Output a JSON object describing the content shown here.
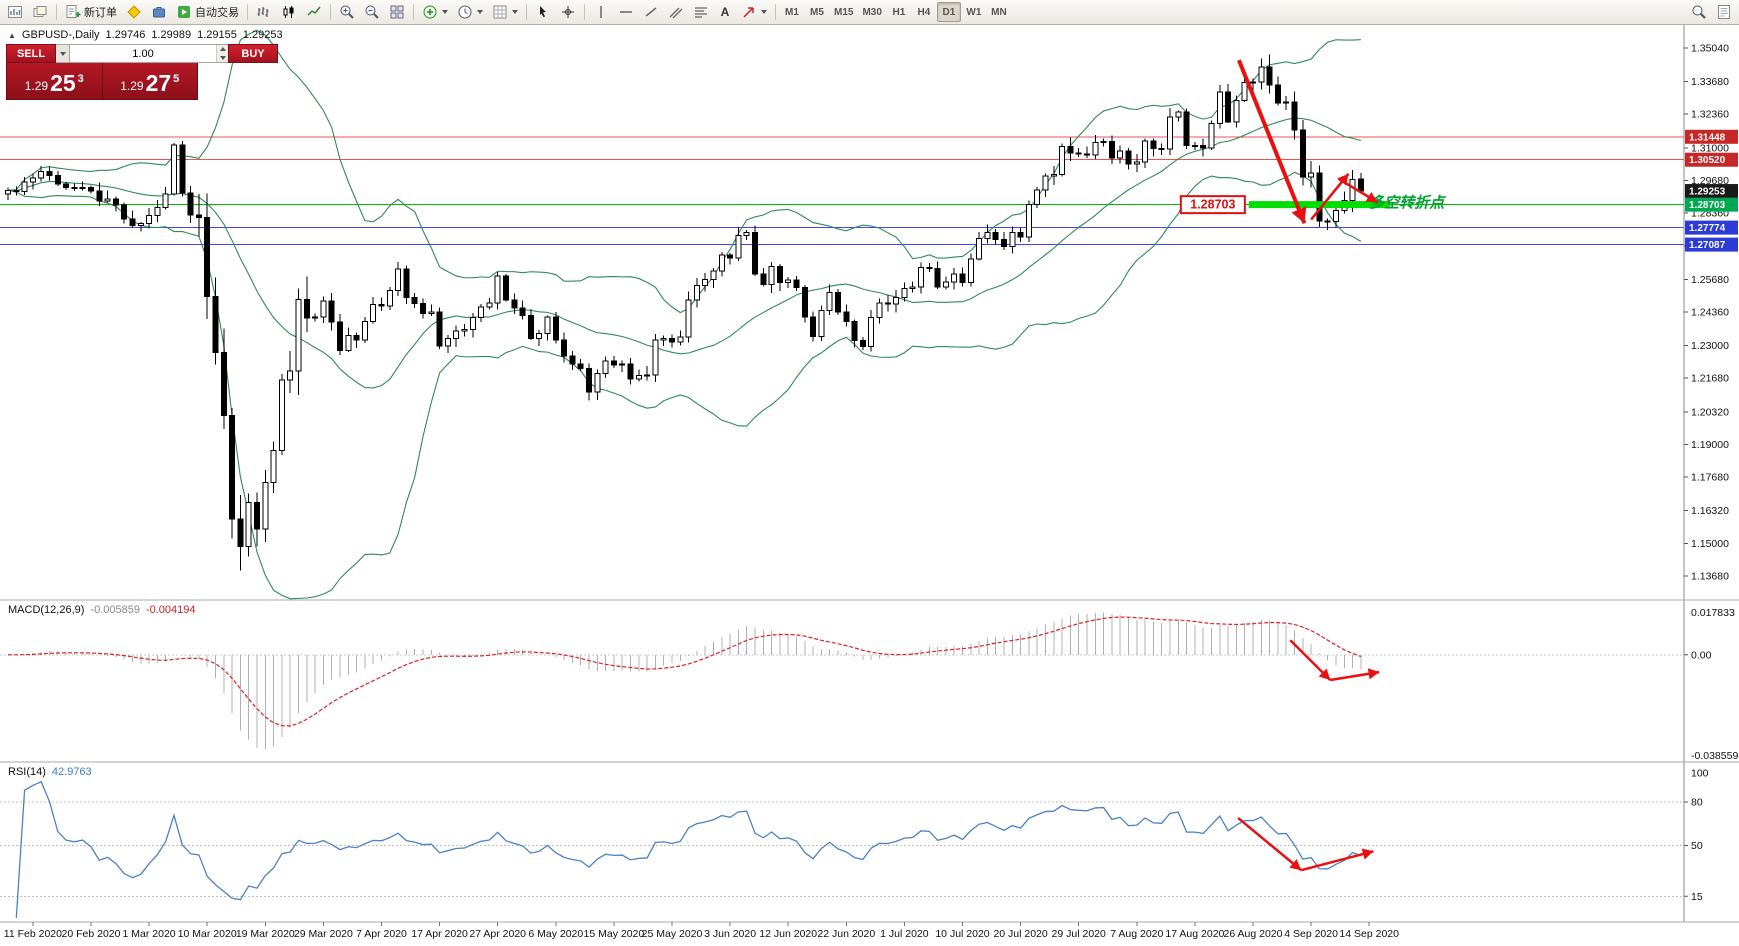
{
  "toolbar": {
    "new_order_label": "新订单",
    "autotrading_label": "自动交易",
    "text_tool_label": "A",
    "timeframes": [
      "M1",
      "M5",
      "M15",
      "M30",
      "H1",
      "H4",
      "D1",
      "W1",
      "MN"
    ],
    "active_timeframe": "D1"
  },
  "symbol_info": {
    "collapse_icon": "▲",
    "symbol": "GBPUSD-,Daily",
    "open": "1.29746",
    "high": "1.29989",
    "low": "1.29155",
    "close": "1.29253"
  },
  "trade_panel": {
    "sell_label": "SELL",
    "buy_label": "BUY",
    "volume": "1.00",
    "sell_price_main": "1.29",
    "sell_price_big": "25",
    "sell_price_sup": "3",
    "buy_price_main": "1.29",
    "buy_price_big": "27",
    "buy_price_sup": "5"
  },
  "chart_data": {
    "type": "candlestick",
    "symbol": "GBPUSD",
    "period": "Daily",
    "bars": 164,
    "price_range": {
      "max": 1.3504,
      "min": 1.1368
    },
    "close_waypoints": [
      [
        0,
        1.2915
      ],
      [
        2,
        1.296
      ],
      [
        4,
        1.3005
      ],
      [
        7,
        1.2945
      ],
      [
        10,
        1.2915
      ],
      [
        13,
        1.2858
      ],
      [
        15,
        1.2772
      ],
      [
        17,
        1.2822
      ],
      [
        19,
        1.2905
      ],
      [
        20,
        1.311
      ],
      [
        21,
        1.2912
      ],
      [
        22,
        1.2832
      ],
      [
        23,
        1.2843
      ],
      [
        24,
        1.251
      ],
      [
        25,
        1.2272
      ],
      [
        26,
        1.2052
      ],
      [
        27,
        1.1622
      ],
      [
        28,
        1.1492
      ],
      [
        29,
        1.1632
      ],
      [
        30,
        1.1542
      ],
      [
        31,
        1.1762
      ],
      [
        32,
        1.1882
      ],
      [
        33,
        1.2182
      ],
      [
        34,
        1.2192
      ],
      [
        35,
        1.2452
      ],
      [
        36,
        1.2382
      ],
      [
        37,
        1.2417
      ],
      [
        38,
        1.2472
      ],
      [
        39,
        1.2392
      ],
      [
        40,
        1.2267
      ],
      [
        41,
        1.2342
      ],
      [
        42,
        1.2332
      ],
      [
        43,
        1.2392
      ],
      [
        44,
        1.2457
      ],
      [
        45,
        1.2467
      ],
      [
        46,
        1.2522
      ],
      [
        47,
        1.2622
      ],
      [
        48,
        1.2507
      ],
      [
        49,
        1.2477
      ],
      [
        50,
        1.2442
      ],
      [
        51,
        1.2427
      ],
      [
        52,
        1.2297
      ],
      [
        53,
        1.2332
      ],
      [
        54,
        1.2347
      ],
      [
        55,
        1.2367
      ],
      [
        56,
        1.2422
      ],
      [
        57,
        1.2462
      ],
      [
        58,
        1.2482
      ],
      [
        59,
        1.2592
      ],
      [
        60,
        1.2497
      ],
      [
        61,
        1.2442
      ],
      [
        62,
        1.2437
      ],
      [
        63,
        1.2342
      ],
      [
        64,
        1.2362
      ],
      [
        65,
        1.2412
      ],
      [
        66,
        1.2332
      ],
      [
        67,
        1.2262
      ],
      [
        68,
        1.2232
      ],
      [
        69,
        1.2212
      ],
      [
        70,
        1.2112
      ],
      [
        71,
        1.2197
      ],
      [
        72,
        1.2252
      ],
      [
        73,
        1.2232
      ],
      [
        74,
        1.2222
      ],
      [
        75,
        1.2177
      ],
      [
        76,
        1.2172
      ],
      [
        77,
        1.2192
      ],
      [
        78,
        1.2337
      ],
      [
        79,
        1.2322
      ],
      [
        80,
        1.2317
      ],
      [
        81,
        1.2347
      ],
      [
        82,
        1.2492
      ],
      [
        83,
        1.2557
      ],
      [
        84,
        1.2572
      ],
      [
        85,
        1.2602
      ],
      [
        86,
        1.2672
      ],
      [
        87,
        1.2657
      ],
      [
        88,
        1.2732
      ],
      [
        89,
        1.2747
      ],
      [
        90,
        1.2602
      ],
      [
        91,
        1.2547
      ],
      [
        92,
        1.2612
      ],
      [
        93,
        1.2547
      ],
      [
        94,
        1.2557
      ],
      [
        95,
        1.2522
      ],
      [
        96,
        1.2427
      ],
      [
        97,
        1.2352
      ],
      [
        98,
        1.2442
      ],
      [
        99,
        1.2522
      ],
      [
        100,
        1.2422
      ],
      [
        101,
        1.2412
      ],
      [
        102,
        1.2332
      ],
      [
        103,
        1.2297
      ],
      [
        104,
        1.2402
      ],
      [
        105,
        1.2477
      ],
      [
        106,
        1.2467
      ],
      [
        107,
        1.2487
      ],
      [
        108,
        1.2517
      ],
      [
        109,
        1.2547
      ],
      [
        110,
        1.2612
      ],
      [
        111,
        1.2627
      ],
      [
        112,
        1.2552
      ],
      [
        113,
        1.2557
      ],
      [
        114,
        1.2592
      ],
      [
        115,
        1.2557
      ],
      [
        116,
        1.2637
      ],
      [
        117,
        1.2737
      ],
      [
        118,
        1.2742
      ],
      [
        119,
        1.2737
      ],
      [
        120,
        1.2692
      ],
      [
        121,
        1.2742
      ],
      [
        122,
        1.2752
      ],
      [
        123,
        1.2887
      ],
      [
        124,
        1.2922
      ],
      [
        125,
        1.2992
      ],
      [
        126,
        1.3002
      ],
      [
        127,
        1.3092
      ],
      [
        128,
        1.3087
      ],
      [
        129,
        1.3077
      ],
      [
        130,
        1.3062
      ],
      [
        131,
        1.3112
      ],
      [
        132,
        1.3142
      ],
      [
        133,
        1.3057
      ],
      [
        134,
        1.3077
      ],
      [
        135,
        1.3047
      ],
      [
        136,
        1.3032
      ],
      [
        137,
        1.3117
      ],
      [
        138,
        1.3107
      ],
      [
        139,
        1.3097
      ],
      [
        140,
        1.3217
      ],
      [
        141,
        1.3237
      ],
      [
        142,
        1.3097
      ],
      [
        143,
        1.3122
      ],
      [
        144,
        1.3092
      ],
      [
        145,
        1.3187
      ],
      [
        146,
        1.3312
      ],
      [
        147,
        1.3202
      ],
      [
        148,
        1.3292
      ],
      [
        149,
        1.3352
      ],
      [
        150,
        1.3372
      ],
      [
        151,
        1.3432
      ],
      [
        152,
        1.3352
      ],
      [
        153,
        1.3282
      ],
      [
        154,
        1.3282
      ],
      [
        155,
        1.3167
      ],
      [
        156,
        1.2982
      ],
      [
        157,
        1.3002
      ],
      [
        158,
        1.2807
      ],
      [
        159,
        1.2797
      ],
      [
        160,
        1.2847
      ],
      [
        161,
        1.2892
      ],
      [
        162,
        1.2972
      ],
      [
        163,
        1.29253
      ]
    ],
    "ohlc_last": {
      "open": 1.29746,
      "high": 1.29989,
      "low": 1.29155,
      "close": 1.29253
    },
    "candle_up_fill": "#ffffff",
    "candle_down_fill": "#000000",
    "candle_outline": "#000000",
    "bollinger": {
      "period": 20,
      "deviation": 2,
      "color": "#2e8b57"
    },
    "macd": {
      "fast": 12,
      "slow": 26,
      "signal": 9,
      "histogram_color": "#b0b0b0",
      "signal_color": "#dd2222"
    },
    "rsi": {
      "period": 14,
      "color": "#4a82c4",
      "levels": [
        80,
        50,
        15
      ]
    }
  },
  "price_axis": {
    "ticks": [
      "1.35040",
      "1.33680",
      "1.32360",
      "1.31000",
      "1.29680",
      "1.28360",
      "1.27040",
      "1.25680",
      "1.24360",
      "1.23000",
      "1.21680",
      "1.20320",
      "1.19000",
      "1.17680",
      "1.16320",
      "1.15000",
      "1.13680"
    ],
    "tags": [
      {
        "value": "1.31448",
        "price": 1.31448,
        "bg": "#c62828"
      },
      {
        "value": "1.30520",
        "price": 1.3052,
        "bg": "#c62828"
      },
      {
        "value": "1.29253",
        "price": 1.29253,
        "bg": "#1a1a1a"
      },
      {
        "value": "1.28703",
        "price": 1.28703,
        "bg": "#00a84f"
      },
      {
        "value": "1.27774",
        "price": 1.27774,
        "bg": "#2b3bd6"
      },
      {
        "value": "1.27087",
        "price": 1.27087,
        "bg": "#2b3bd6"
      }
    ]
  },
  "hlines": [
    {
      "price": 1.31448,
      "color": "#f05050"
    },
    {
      "price": 1.3052,
      "color": "#f05050"
    },
    {
      "price": 1.28703,
      "color": "#00bb00"
    },
    {
      "price": 1.27774,
      "color": "#4444ee"
    },
    {
      "price": 1.27087,
      "color": "#4444ee"
    }
  ],
  "annotations": {
    "arrow_color": "#e81010",
    "support_zone": {
      "label": "1.28703",
      "price": 1.28703,
      "from_bar": 149.5,
      "to_bar": 166.5,
      "color": "#00dd00",
      "label_color": "#e01010"
    },
    "turning_point": {
      "text": "多空转折点",
      "bar": 164,
      "price": 1.2858,
      "color": "#00a32e"
    },
    "main_arrows": [
      {
        "points": [
          [
            148.3,
            1.3455
          ],
          [
            156.2,
            1.2795
          ]
        ],
        "width": 4
      },
      {
        "points": [
          [
            157.0,
            1.281
          ],
          [
            161.5,
            1.2995
          ]
        ],
        "width": 2.5
      },
      {
        "points": [
          [
            160.3,
            1.2975
          ],
          [
            165.0,
            1.288
          ]
        ],
        "width": 2.5
      }
    ],
    "macd_arrows": [
      {
        "points": [
          [
            154.5,
            0.0052
          ],
          [
            159.3,
            -0.009
          ]
        ],
        "width": 2.5
      },
      {
        "points": [
          [
            159.3,
            -0.009
          ],
          [
            165.2,
            -0.0062
          ]
        ],
        "width": 2.5
      }
    ],
    "rsi_arrows": [
      {
        "points": [
          [
            148.2,
            69
          ],
          [
            155.8,
            33
          ]
        ],
        "width": 2.5
      },
      {
        "points": [
          [
            155.8,
            33
          ],
          [
            164.5,
            46
          ]
        ],
        "width": 2.5
      }
    ]
  },
  "macd_panel": {
    "name": "MACD(12,26,9)",
    "value_main": "-0.005859",
    "value_signal": "-0.004194",
    "scale_top": "0.017833",
    "scale_zero": "0.00",
    "scale_bottom": "-0.038559"
  },
  "rsi_panel": {
    "name": "RSI(14)",
    "value": "42.9763",
    "scale_top": "100",
    "levels": [
      "80",
      "50",
      "15"
    ]
  },
  "date_axis": [
    "11 Feb 2020",
    "20 Feb 2020",
    "1 Mar 2020",
    "10 Mar 2020",
    "19 Mar 2020",
    "29 Mar 2020",
    "7 Apr 2020",
    "17 Apr 2020",
    "27 Apr 2020",
    "6 May 2020",
    "15 May 2020",
    "25 May 2020",
    "3 Jun 2020",
    "12 Jun 2020",
    "22 Jun 2020",
    "1 Jul 2020",
    "10 Jul 2020",
    "20 Jul 2020",
    "29 Jul 2020",
    "7 Aug 2020",
    "17 Aug 2020",
    "26 Aug 2020",
    "4 Sep 2020",
    "14 Sep 2020"
  ]
}
